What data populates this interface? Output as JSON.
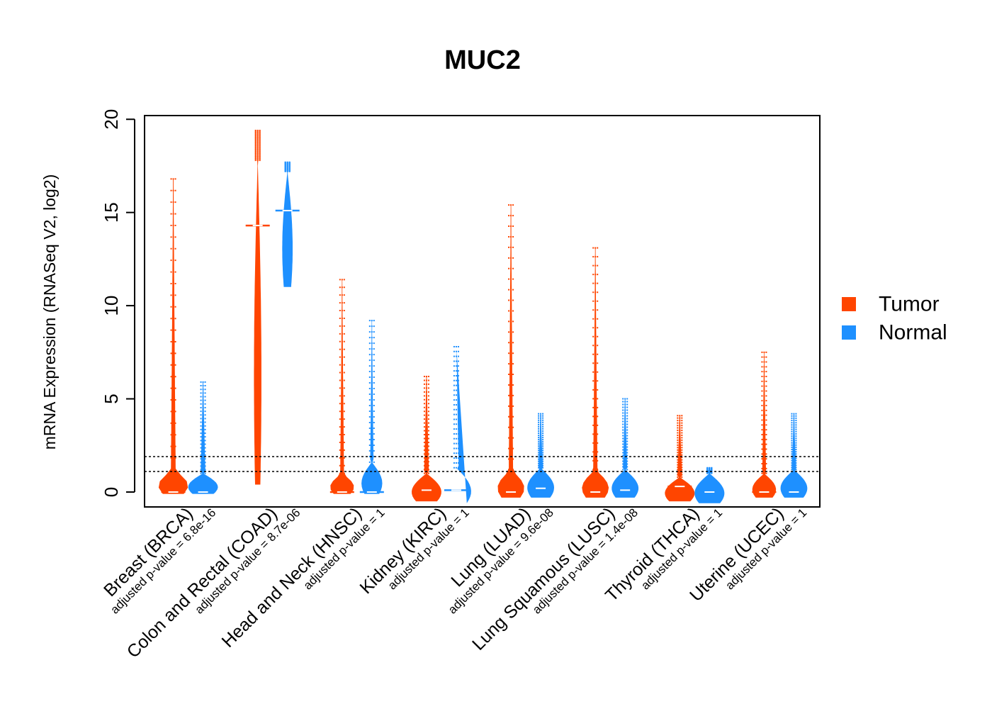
{
  "chart_data": {
    "type": "beanplot",
    "title": "MUC2",
    "xlabel": "",
    "ylabel": "mRNA Expression (RNASeq V2, log2)",
    "ylim": [
      -0.8,
      20.2
    ],
    "yticks": [
      0,
      5,
      10,
      15,
      20
    ],
    "reference_lines": [
      1.1,
      1.9
    ],
    "legend": {
      "position": "right",
      "entries": [
        {
          "name": "Tumor",
          "color": "#FF4500"
        },
        {
          "name": "Normal",
          "color": "#1E90FF"
        }
      ]
    },
    "colors": {
      "tumor": "#FF4500",
      "normal": "#1E90FF"
    },
    "categories": [
      {
        "label": "Breast (BRCA)",
        "pvalue": "adjusted p-value = 6.8e-16",
        "tumor": {
          "min": -0.1,
          "max": 16.8,
          "bulk": 1.2,
          "median": 0,
          "width": 1.0
        },
        "normal": {
          "min": -0.1,
          "max": 5.9,
          "bulk": 1.0,
          "median": 0,
          "width": 1.0
        }
      },
      {
        "label": "Colon and Rectal (COAD)",
        "pvalue": "adjusted p-value = 8.7e-06",
        "tumor": {
          "min": 0.4,
          "max": 19.4,
          "bulk": 17.8,
          "median": 14.3,
          "width": 0.25
        },
        "normal": {
          "min": 11.0,
          "max": 17.7,
          "bulk": 17.2,
          "median": 15.1,
          "width": 0.35
        }
      },
      {
        "label": "Head and Neck (HNSC)",
        "pvalue": "adjusted p-value = 1",
        "tumor": {
          "min": -0.1,
          "max": 11.4,
          "bulk": 1.0,
          "median": 0,
          "width": 0.8
        },
        "normal": {
          "min": -0.1,
          "max": 9.2,
          "bulk": 1.6,
          "median": 0,
          "width": 0.7
        }
      },
      {
        "label": "Kidney (KIRC)",
        "pvalue": "adjusted p-value = 1",
        "tumor": {
          "min": -0.5,
          "max": 6.2,
          "bulk": 1.0,
          "median": 0.1,
          "width": 1.0
        },
        "normal": {
          "min": -0.6,
          "max": 7.8,
          "bulk": 1.3,
          "median": 0.1,
          "width": 1.0
        }
      },
      {
        "label": "Lung (LUAD)",
        "pvalue": "adjusted p-value = 9.6e-08",
        "tumor": {
          "min": -0.3,
          "max": 15.4,
          "bulk": 1.2,
          "median": 0,
          "width": 0.9
        },
        "normal": {
          "min": -0.3,
          "max": 4.2,
          "bulk": 1.3,
          "median": 0.2,
          "width": 0.9
        }
      },
      {
        "label": "Lung Squamous (LUSC)",
        "pvalue": "adjusted p-value = 1.4e-08",
        "tumor": {
          "min": -0.3,
          "max": 13.1,
          "bulk": 1.2,
          "median": 0,
          "width": 0.9
        },
        "normal": {
          "min": -0.3,
          "max": 5.0,
          "bulk": 1.2,
          "median": 0.1,
          "width": 0.9
        }
      },
      {
        "label": "Thyroid (THCA)",
        "pvalue": "adjusted p-value = 1",
        "tumor": {
          "min": -0.5,
          "max": 4.1,
          "bulk": 0.8,
          "median": 0.3,
          "width": 1.0
        },
        "normal": {
          "min": -0.6,
          "max": 1.3,
          "bulk": 1.0,
          "median": 0,
          "width": 1.0
        }
      },
      {
        "label": "Uterine (UCEC)",
        "pvalue": "adjusted p-value = 1",
        "tumor": {
          "min": -0.3,
          "max": 7.5,
          "bulk": 1.0,
          "median": 0,
          "width": 0.8
        },
        "normal": {
          "min": -0.3,
          "max": 4.2,
          "bulk": 1.2,
          "median": 0,
          "width": 0.9
        }
      }
    ]
  }
}
